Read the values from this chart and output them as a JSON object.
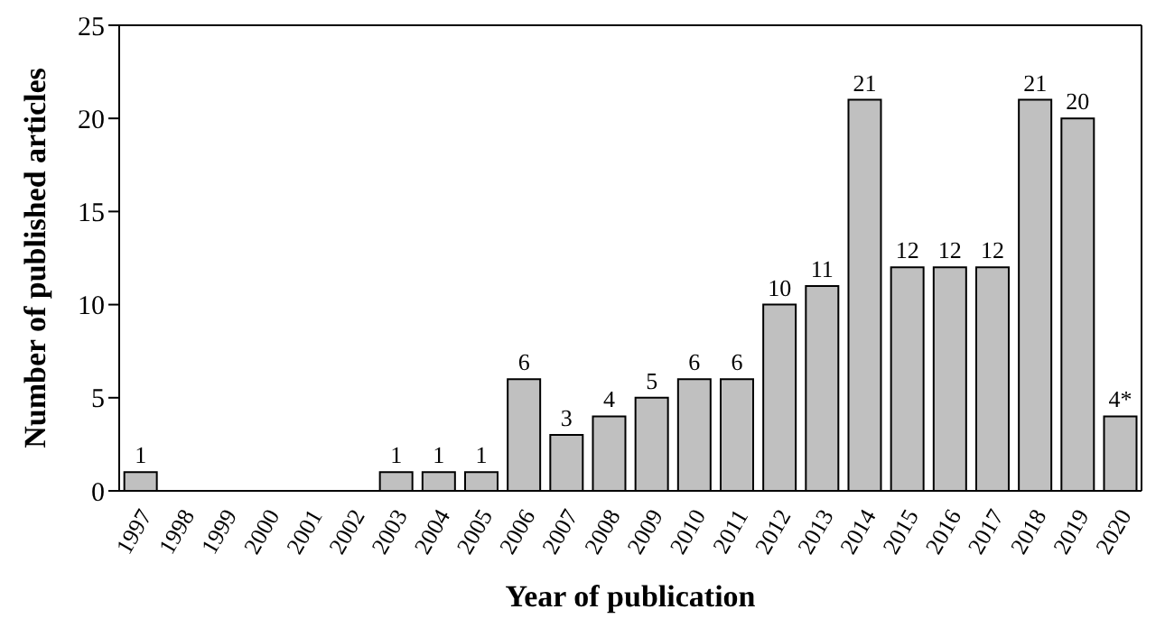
{
  "chart_data": {
    "type": "bar",
    "xlabel": "Year of publication",
    "ylabel": "Number of published articles",
    "categories": [
      "1997",
      "1998",
      "1999",
      "2000",
      "2001",
      "2002",
      "2003",
      "2004",
      "2005",
      "2006",
      "2007",
      "2008",
      "2009",
      "2010",
      "2011",
      "2012",
      "2013",
      "2014",
      "2015",
      "2016",
      "2017",
      "2018",
      "2019",
      "2020"
    ],
    "values": [
      1,
      0,
      0,
      0,
      0,
      0,
      1,
      1,
      1,
      6,
      3,
      4,
      5,
      6,
      6,
      10,
      11,
      21,
      12,
      12,
      12,
      21,
      20,
      4
    ],
    "value_labels": [
      "1",
      null,
      null,
      null,
      null,
      null,
      "1",
      "1",
      "1",
      "6",
      "3",
      "4",
      "5",
      "6",
      "6",
      "10",
      "11",
      "21",
      "12",
      "12",
      "12",
      "21",
      "20",
      "4*"
    ],
    "color": "#c0c0c0",
    "ylim": [
      0,
      25
    ],
    "yticks": [
      0,
      5,
      10,
      15,
      20,
      25
    ],
    "grid": false,
    "legend": false
  }
}
